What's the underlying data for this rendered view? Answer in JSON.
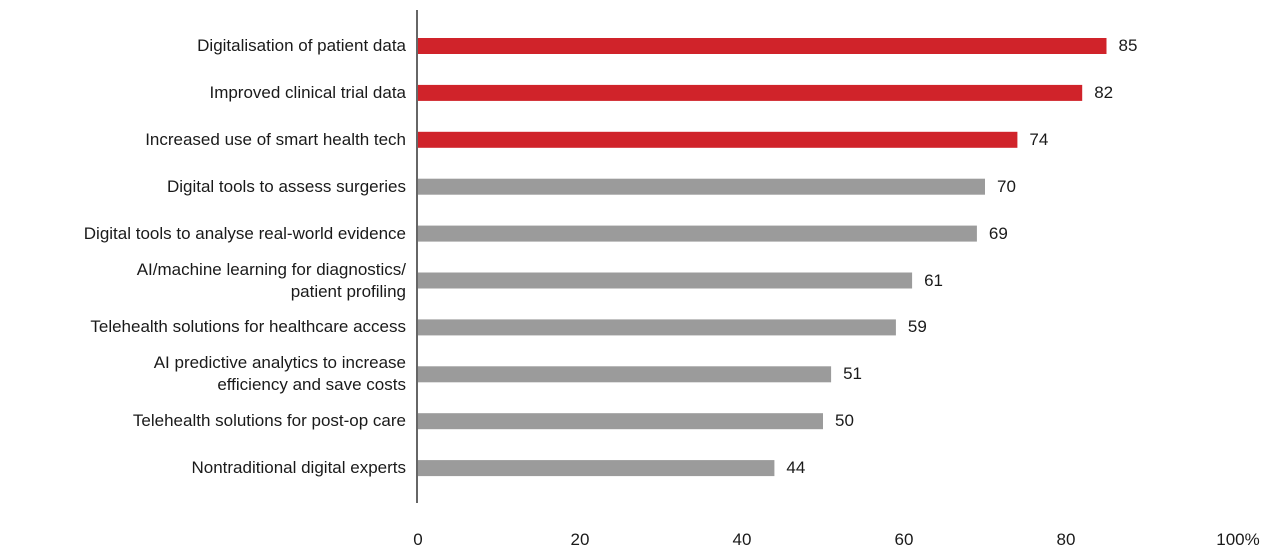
{
  "chart_data": {
    "type": "bar",
    "orientation": "horizontal",
    "categories": [
      "Digitalisation of patient data",
      "Improved clinical trial data",
      "Increased use of smart health tech",
      "Digital tools to assess surgeries",
      "Digital tools to analyse real-world evidence",
      "AI/machine learning for diagnostics/\npatient profiling",
      "Telehealth solutions for healthcare access",
      "AI predictive analytics to increase\nefficiency and save costs",
      "Telehealth solutions for post-op care",
      "Nontraditional digital experts"
    ],
    "values": [
      85,
      82,
      74,
      70,
      69,
      61,
      59,
      51,
      50,
      44
    ],
    "highlighted": [
      true,
      true,
      true,
      false,
      false,
      false,
      false,
      false,
      false,
      false
    ],
    "xlim": [
      0,
      100
    ],
    "xticks": [
      "0",
      "20",
      "40",
      "60",
      "80",
      "100%"
    ],
    "xtick_values": [
      0,
      20,
      40,
      60,
      80,
      100
    ],
    "grid": false,
    "colors": {
      "highlight": "#d0232a",
      "default": "#9b9b9b",
      "axis": "#333333"
    }
  }
}
